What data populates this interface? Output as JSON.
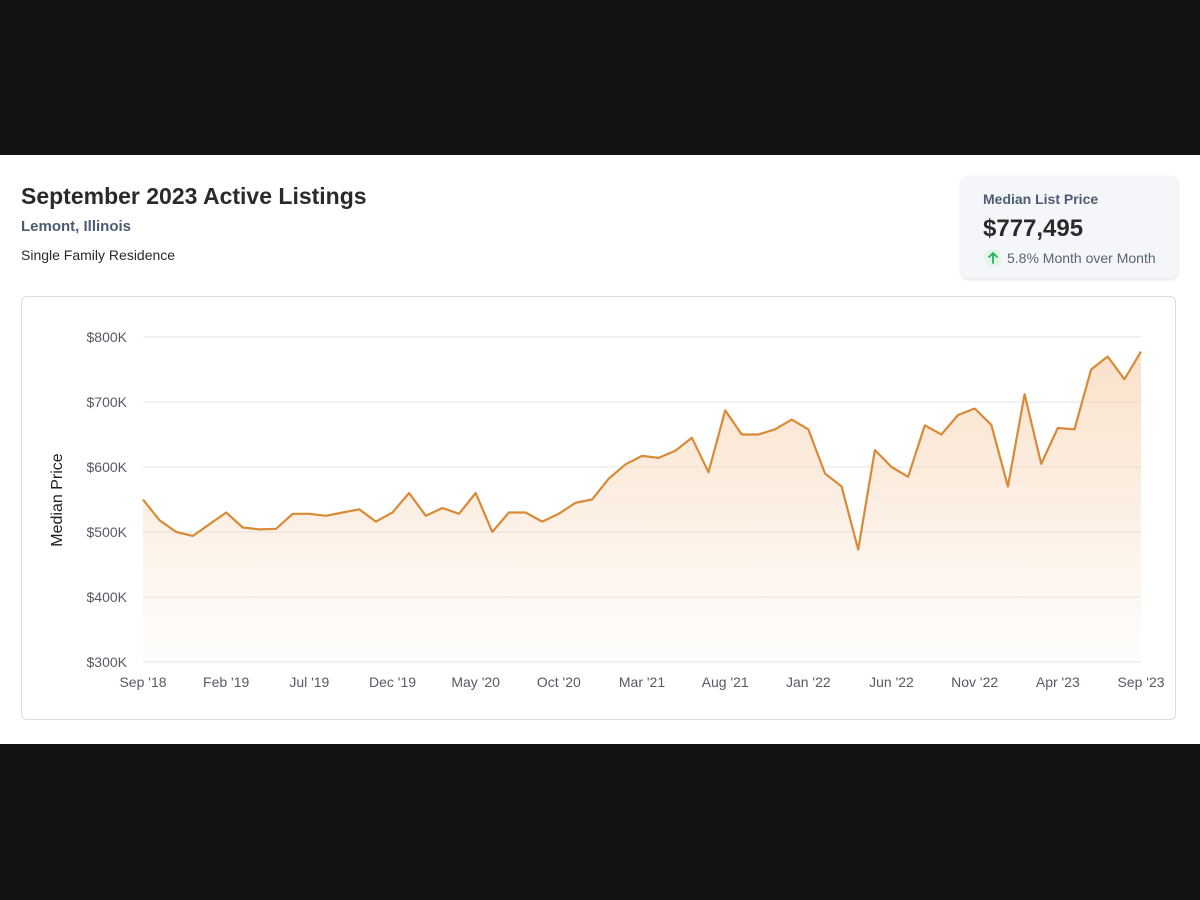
{
  "header": {
    "title": "September 2023 Active Listings",
    "location": "Lemont, Illinois",
    "property_type": "Single Family Residence"
  },
  "stat_card": {
    "label": "Median List Price",
    "value": "$777,495",
    "change": "5.8% Month over Month",
    "trend_icon": "arrow-up-icon",
    "trend_color": "#22b35a"
  },
  "chart_data": {
    "type": "area",
    "title": "",
    "xlabel": "",
    "ylabel": "Median Price",
    "ylim": [
      300000,
      800000
    ],
    "yticks": [
      300000,
      400000,
      500000,
      600000,
      700000,
      800000
    ],
    "ytick_labels": [
      "$300K",
      "$400K",
      "$500K",
      "$600K",
      "$700K",
      "$800K"
    ],
    "xtick_labels": [
      "Sep '18",
      "Feb '19",
      "Jul '19",
      "Dec '19",
      "May '20",
      "Oct '20",
      "Mar '21",
      "Aug '21",
      "Jan '22",
      "Jun '22",
      "Nov '22",
      "Apr '23",
      "Sep '23"
    ],
    "xtick_every": 5,
    "grid": true,
    "line_color": "#d98a35",
    "fill_color": "#f6c9a0",
    "series": [
      {
        "values": [
          550000,
          518000,
          500000,
          494000,
          512000,
          530000,
          507000,
          504000,
          505000,
          528000,
          528000,
          525000,
          530000,
          535000,
          516000,
          530000,
          560000,
          525000,
          537000,
          528000,
          560000,
          500000,
          530000,
          530000,
          516000,
          528000,
          545000,
          550000,
          582000,
          604000,
          617000,
          614000,
          625000,
          645000,
          592000,
          687000,
          650000,
          650000,
          658000,
          673000,
          658000,
          590000,
          570000,
          473000,
          626000,
          600000,
          585000,
          664000,
          650000,
          680000,
          690000,
          665000,
          570000,
          712000,
          605000,
          660000,
          658000,
          750000,
          770000,
          735000,
          777495
        ]
      }
    ]
  }
}
